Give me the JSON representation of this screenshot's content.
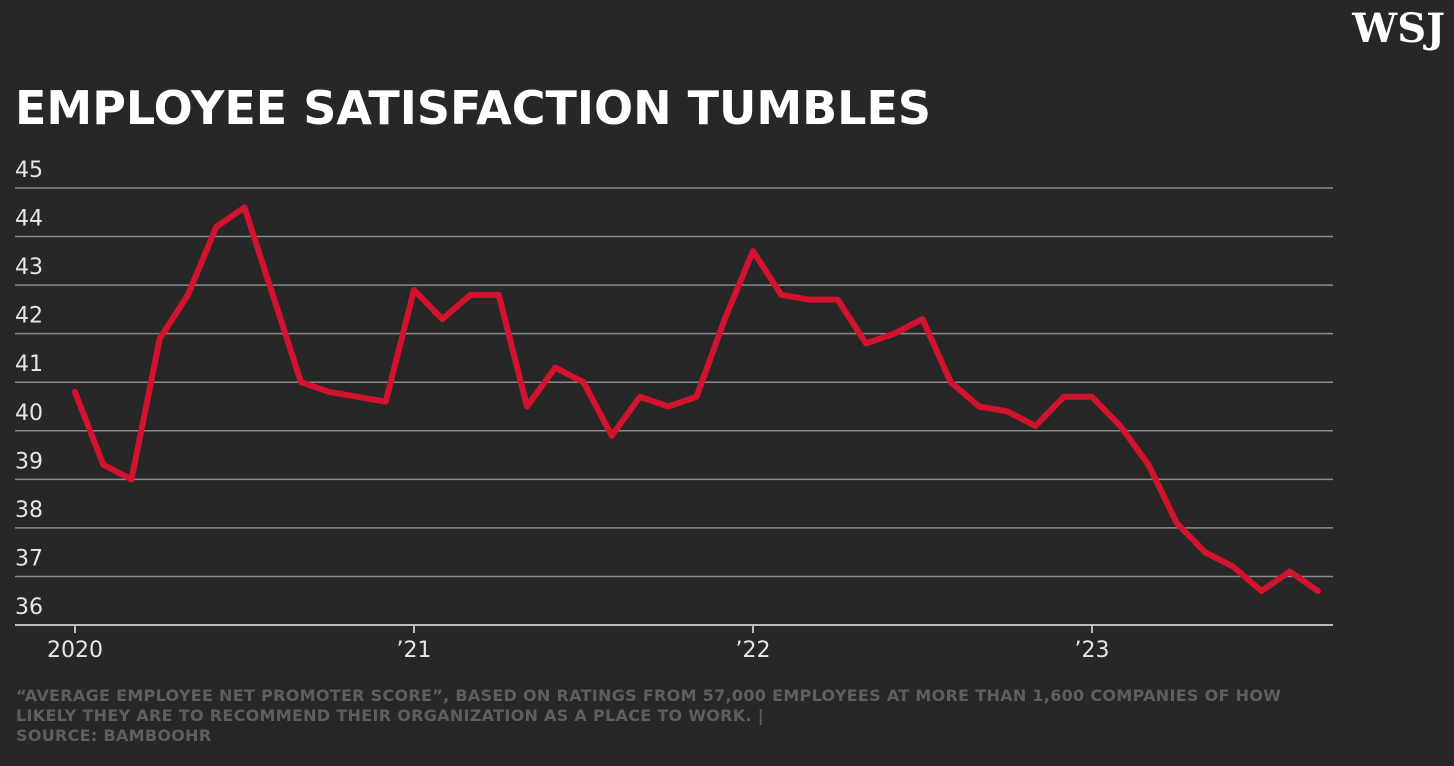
{
  "brand": "WSJ",
  "chart_data": {
    "type": "line",
    "title": "EMPLOYEE SATISFACTION TUMBLES",
    "note": "“AVERAGE EMPLOYEE NET PROMOTER SCORE”, BASED ON RATINGS FROM 57,000 EMPLOYEES AT MORE THAN 1,600 COMPANIES OF HOW LIKELY THEY ARE TO RECOMMEND THEIR ORGANIZATION AS A PLACE TO WORK. |",
    "source": "SOURCE: BAMBOOHR",
    "categories": [
      "2020",
      null,
      null,
      null,
      null,
      null,
      null,
      null,
      null,
      null,
      null,
      null,
      "’21",
      null,
      null,
      null,
      null,
      null,
      null,
      null,
      null,
      null,
      null,
      null,
      "’22",
      null,
      null,
      null,
      null,
      null,
      null,
      null,
      null,
      null,
      null,
      null,
      "’23",
      null,
      null,
      null,
      null,
      null,
      null,
      null,
      null
    ],
    "values": [
      40.8,
      39.3,
      39.0,
      41.9,
      42.8,
      44.2,
      44.6,
      42.8,
      41.0,
      40.8,
      40.7,
      40.6,
      42.9,
      42.3,
      42.8,
      42.8,
      40.5,
      41.3,
      41.0,
      39.9,
      40.7,
      40.5,
      40.7,
      42.3,
      43.7,
      42.8,
      42.7,
      42.7,
      41.8,
      42.0,
      42.3,
      41.0,
      40.5,
      40.4,
      40.1,
      40.7,
      40.7,
      40.1,
      39.3,
      38.1,
      37.5,
      37.2,
      36.7,
      37.1,
      36.7
    ],
    "color": "#d3122e",
    "ylim": [
      36,
      45
    ],
    "yticks": [
      36,
      37,
      38,
      39,
      40,
      41,
      42,
      43,
      44,
      45
    ],
    "grid": true
  }
}
